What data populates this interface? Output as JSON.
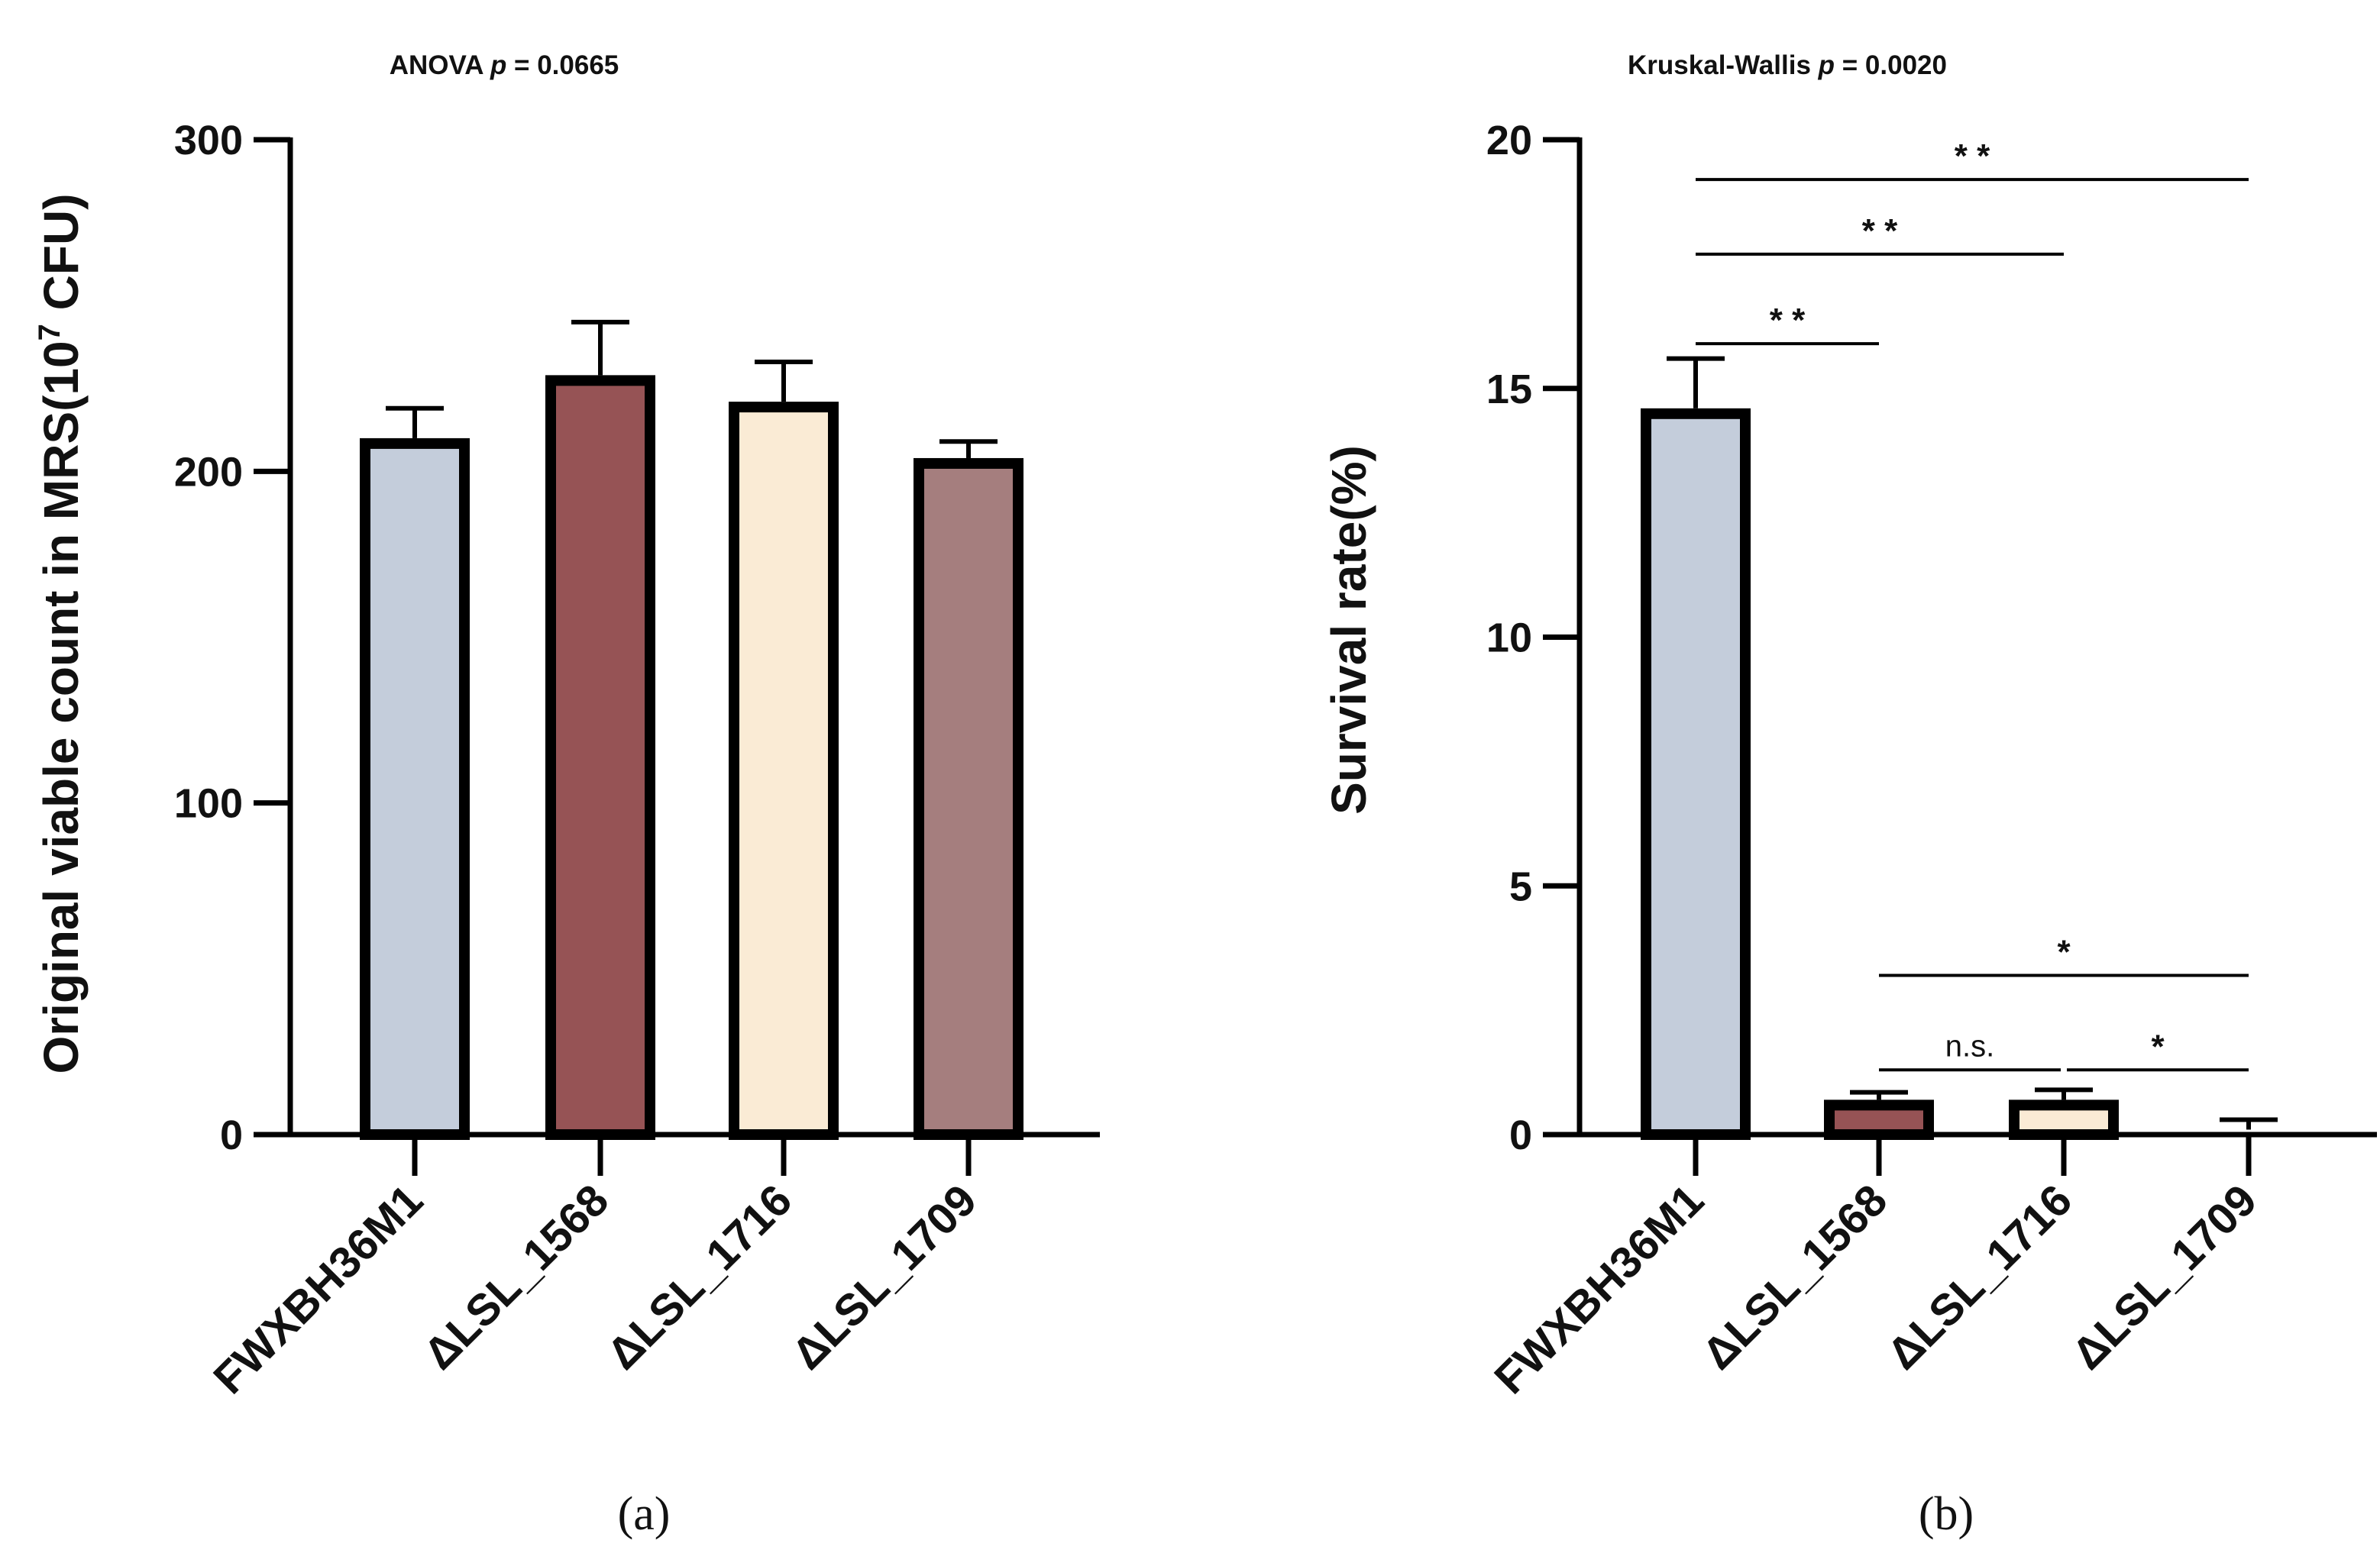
{
  "chart_data": [
    {
      "panel_label": "(a)",
      "type": "bar",
      "title_prefix": "ANOVA ",
      "title_p": "p",
      "title_suffix": " = 0.0665",
      "ylabel_prefix": "Original viable count in MRS(10",
      "ylabel_sup": "7",
      "ylabel_suffix": " CFU)",
      "xlabel": "",
      "ylim": [
        0,
        300
      ],
      "yticks": [
        0,
        100,
        200,
        300
      ],
      "categories": [
        "FWXBH36M1",
        "ΔLSL_1568",
        "ΔLSL_1716",
        "ΔLSL_1709"
      ],
      "values": [
        210,
        229,
        221,
        204
      ],
      "errors": [
        9,
        16,
        12,
        5
      ],
      "colors": [
        "#c4cddb",
        "#965355",
        "#faebd5",
        "#a57e7e"
      ]
    },
    {
      "panel_label": "(b)",
      "type": "bar",
      "title_prefix": "Kruskal-Wallis ",
      "title_p": "p",
      "title_suffix": " = 0.0020",
      "ylabel": "Survival rate(%)",
      "xlabel": "",
      "ylim": [
        0,
        20
      ],
      "yticks": [
        0,
        5,
        10,
        15,
        20
      ],
      "categories": [
        "FWXBH36M1",
        "ΔLSL_1568",
        "ΔLSL_1716",
        "ΔLSL_1709"
      ],
      "values": [
        14.6,
        0.7,
        0.7,
        0.1
      ],
      "errors": [
        1.0,
        0.15,
        0.2,
        0.2
      ],
      "colors": [
        "#c4cddb",
        "#965355",
        "#faebd5",
        "#a57e7e"
      ],
      "comparisons": [
        {
          "from": 0,
          "to": 3,
          "y": 19.2,
          "label": "* *"
        },
        {
          "from": 0,
          "to": 2,
          "y": 17.7,
          "label": "* *"
        },
        {
          "from": 0,
          "to": 1,
          "y": 15.9,
          "label": "* *"
        },
        {
          "from": 1,
          "to": 3,
          "y": 3.2,
          "label": "*"
        },
        {
          "from": 1,
          "to": 2,
          "y": 1.3,
          "label": "n.s."
        },
        {
          "from": 2,
          "to": 3,
          "y": 1.3,
          "label": "*"
        }
      ]
    }
  ]
}
